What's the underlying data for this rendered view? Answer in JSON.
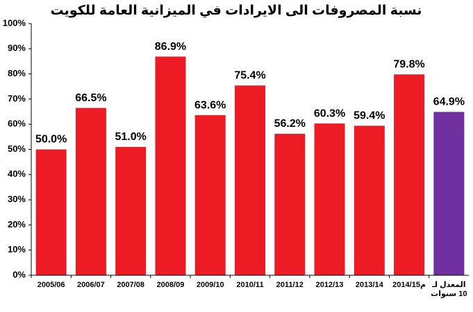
{
  "chart_data": {
    "type": "bar",
    "title": "نسبة المصروفات الى الايرادات في الميزانية العامة للكويت",
    "categories": [
      "2005/06",
      "2006/07",
      "2007/08",
      "2008/09",
      "2009/10",
      "2010/11",
      "2011/12",
      "2012/13",
      "2013/14",
      "2014/15م",
      "المعدل لـ 10 سنوات"
    ],
    "values": [
      50.0,
      66.5,
      51.0,
      86.9,
      63.6,
      75.4,
      56.2,
      60.3,
      59.4,
      79.8,
      64.9
    ],
    "value_labels": [
      "50.0%",
      "66.5%",
      "51.0%",
      "86.9%",
      "63.6%",
      "75.4%",
      "56.2%",
      "60.3%",
      "59.4%",
      "79.8%",
      "64.9%"
    ],
    "colors": [
      "#ed1c24",
      "#ed1c24",
      "#ed1c24",
      "#ed1c24",
      "#ed1c24",
      "#ed1c24",
      "#ed1c24",
      "#ed1c24",
      "#ed1c24",
      "#ed1c24",
      "#7030a0"
    ],
    "ylim": [
      0,
      100
    ],
    "yticks": [
      {
        "value": 0,
        "label": "0%"
      },
      {
        "value": 10,
        "label": "10%"
      },
      {
        "value": 20,
        "label": "20%"
      },
      {
        "value": 30,
        "label": "30%"
      },
      {
        "value": 40,
        "label": "40%"
      },
      {
        "value": 50,
        "label": "50%"
      },
      {
        "value": 60,
        "label": "60%"
      },
      {
        "value": 70,
        "label": "70%"
      },
      {
        "value": 80,
        "label": "80%"
      },
      {
        "value": 90,
        "label": "90%"
      },
      {
        "value": 100,
        "label": "100%"
      }
    ],
    "grid": false
  }
}
